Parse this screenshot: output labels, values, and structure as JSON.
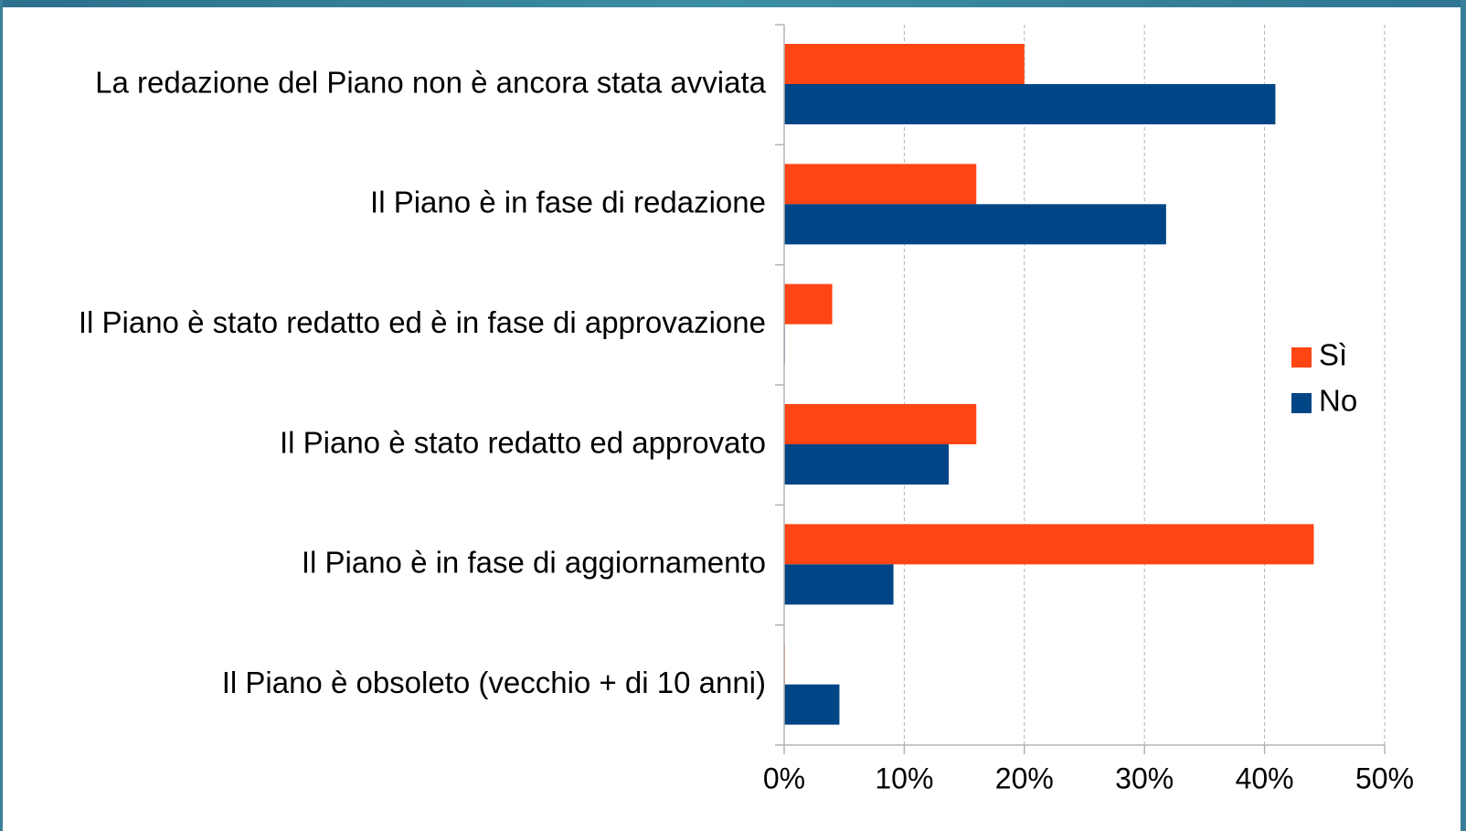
{
  "chart_data": {
    "type": "hbar",
    "categories": [
      "La redazione del Piano non è ancora stata avviata",
      "Il Piano è in fase di redazione",
      "Il Piano è stato redatto ed è in fase di approvazione",
      "Il Piano è stato redatto ed approvato",
      "Il Piano è in fase di aggiornamento",
      "Il Piano è obsoleto (vecchio + di 10 anni)"
    ],
    "series": [
      {
        "name": "Sì",
        "color": "#ff4514",
        "values": [
          20,
          16,
          4,
          16,
          44.1,
          0
        ]
      },
      {
        "name": "No",
        "color": "#004586",
        "values": [
          40.9,
          31.8,
          0,
          13.7,
          9.1,
          4.6
        ]
      }
    ],
    "xlim": [
      0,
      50
    ],
    "xticks": [
      {
        "value": 0,
        "label": "0%"
      },
      {
        "value": 10,
        "label": "10%"
      },
      {
        "value": 20,
        "label": "20%"
      },
      {
        "value": 30,
        "label": "30%"
      },
      {
        "value": 40,
        "label": "40%"
      },
      {
        "value": 50,
        "label": "50%"
      }
    ],
    "grid": true,
    "legend": "right"
  }
}
